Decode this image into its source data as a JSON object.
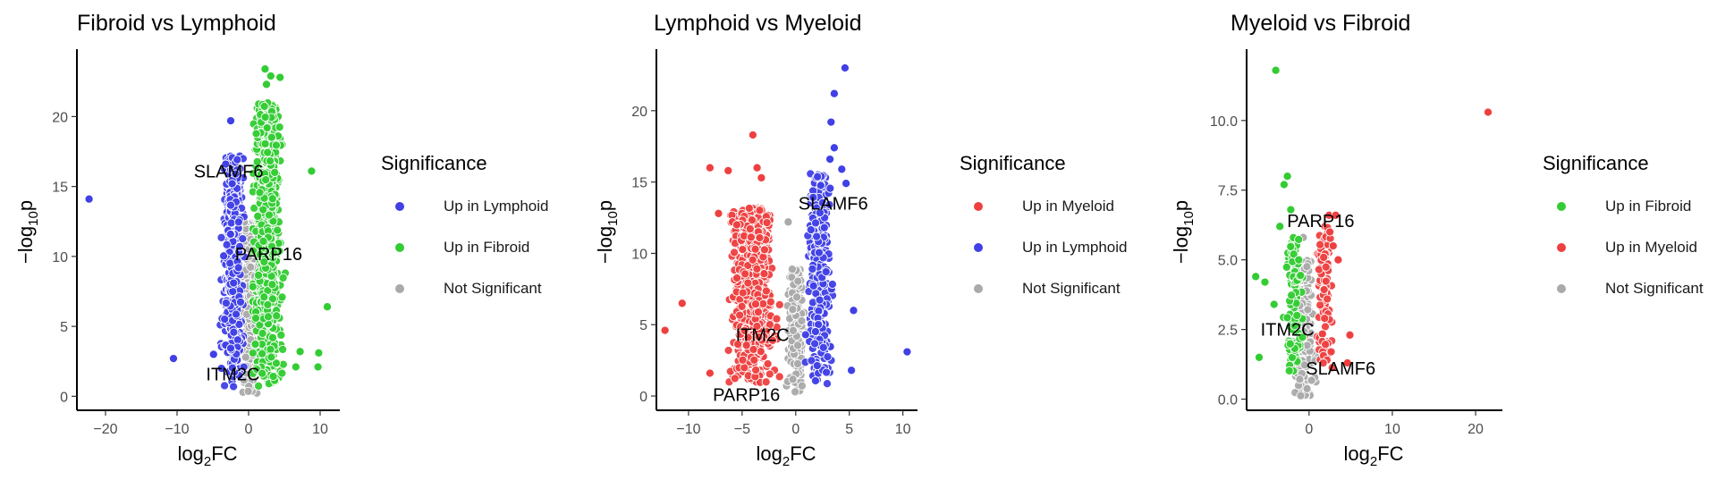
{
  "colors": {
    "lymphoid": "#4040E6",
    "fibroid": "#33CC33",
    "myeloid": "#EE4040",
    "ns": "#AAAAAA"
  },
  "chart_data": [
    {
      "type": "scatter",
      "title": "Fibroid vs Lymphoid",
      "xlabel": "log2FC",
      "ylabel": "-log10p",
      "xlim": [
        -24,
        12.5
      ],
      "ylim": [
        -1,
        24.5
      ],
      "xticks": [
        -20,
        -10,
        0,
        10
      ],
      "yticks": [
        0,
        5,
        10,
        15,
        20
      ],
      "grid": false,
      "legend": {
        "title": "Significance",
        "placement": "right",
        "entries": [
          {
            "label": "Up in Lymphoid",
            "color": "#4040E6"
          },
          {
            "label": "Up in Fibroid",
            "color": "#33CC33"
          },
          {
            "label": "Not Significant",
            "color": "#AAAAAA"
          }
        ]
      },
      "series": [
        {
          "name": "Up in Lymphoid",
          "color": "#4040E6",
          "points": [
            [
              -22.3,
              14.1
            ],
            [
              -10.5,
              2.7
            ],
            [
              -2.5,
              19.7
            ],
            [
              -3.2,
              16.6
            ],
            [
              -2.3,
              15.2
            ],
            [
              -4.9,
              3.0
            ],
            [
              -3.8,
              2.0
            ],
            [
              -2.1,
              8.1
            ]
          ],
          "cluster": {
            "n": 520,
            "x": [
              -5.5,
              -0.6
            ],
            "y": [
              0.5,
              17.3
            ],
            "center": -2.1
          }
        },
        {
          "name": "Up in Fibroid",
          "color": "#33CC33",
          "points": [
            [
              2.3,
              23.4
            ],
            [
              3.1,
              22.9
            ],
            [
              4.4,
              22.8
            ],
            [
              2.5,
              22.3
            ],
            [
              8.8,
              16.1
            ],
            [
              11.0,
              6.4
            ],
            [
              9.7,
              2.1
            ],
            [
              9.8,
              3.1
            ],
            [
              7.2,
              3.2
            ],
            [
              6.6,
              2.1
            ]
          ],
          "cluster": {
            "n": 780,
            "x": [
              0.6,
              7.5
            ],
            "y": [
              0.5,
              21.0
            ],
            "center": 2.6
          }
        },
        {
          "name": "Not Significant",
          "color": "#AAAAAA",
          "points": [],
          "cluster": {
            "n": 260,
            "x": [
              -1.6,
              1.6
            ],
            "y": [
              0.0,
              12.5
            ],
            "center": 0.0
          }
        }
      ],
      "annotations": [
        {
          "text": "SLAMF6",
          "x": -2.8,
          "y": 16.1
        },
        {
          "text": "PARP16",
          "x": 2.8,
          "y": 10.2
        },
        {
          "text": "ITM2C",
          "x": -2.2,
          "y": 1.6
        }
      ]
    },
    {
      "type": "scatter",
      "title": "Lymphoid vs Myeloid",
      "xlabel": "log2FC",
      "ylabel": "-log10p",
      "xlim": [
        -13,
        11.2
      ],
      "ylim": [
        -1,
        24
      ],
      "xticks": [
        -10,
        -5,
        0,
        5,
        10
      ],
      "yticks": [
        0,
        5,
        10,
        15,
        20
      ],
      "grid": false,
      "legend": {
        "title": "Significance",
        "placement": "right",
        "entries": [
          {
            "label": "Up in Myeloid",
            "color": "#EE4040"
          },
          {
            "label": "Up in Lymphoid",
            "color": "#4040E6"
          },
          {
            "label": "Not Significant",
            "color": "#AAAAAA"
          }
        ]
      },
      "series": [
        {
          "name": "Up in Myeloid",
          "color": "#EE4040",
          "points": [
            [
              -12.2,
              4.6
            ],
            [
              -10.6,
              6.5
            ],
            [
              -8.0,
              16.0
            ],
            [
              -6.3,
              15.8
            ],
            [
              -4.0,
              18.3
            ],
            [
              -3.6,
              16.0
            ],
            [
              -3.2,
              15.3
            ],
            [
              -7.2,
              12.8
            ],
            [
              -8.0,
              1.6
            ],
            [
              -5.5,
              12.0
            ]
          ],
          "cluster": {
            "n": 640,
            "x": [
              -8.2,
              -1.5
            ],
            "y": [
              0.8,
              13.2
            ],
            "center": -4.0
          }
        },
        {
          "name": "Up in Lymphoid",
          "color": "#4040E6",
          "points": [
            [
              4.6,
              23.0
            ],
            [
              3.6,
              21.2
            ],
            [
              3.3,
              19.2
            ],
            [
              3.6,
              17.4
            ],
            [
              3.2,
              16.6
            ],
            [
              4.3,
              15.9
            ],
            [
              4.7,
              14.9
            ],
            [
              5.4,
              6.0
            ],
            [
              5.2,
              1.8
            ],
            [
              10.4,
              3.1
            ]
          ],
          "cluster": {
            "n": 330,
            "x": [
              0.9,
              4.6
            ],
            "y": [
              0.8,
              15.6
            ],
            "center": 2.2
          }
        },
        {
          "name": "Not Significant",
          "color": "#AAAAAA",
          "points": [
            [
              -0.7,
              12.2
            ]
          ],
          "cluster": {
            "n": 190,
            "x": [
              -1.4,
              1.2
            ],
            "y": [
              0.0,
              9.0
            ],
            "center": 0.0
          }
        }
      ],
      "annotations": [
        {
          "text": "SLAMF6",
          "x": 3.5,
          "y": 13.5
        },
        {
          "text": "PARP16",
          "x": -4.6,
          "y": 0.1
        },
        {
          "text": "ITM2C",
          "x": -3.1,
          "y": 4.3
        }
      ]
    },
    {
      "type": "scatter",
      "title": "Myeloid vs Fibroid",
      "xlabel": "log2FC",
      "ylabel": "-log10p",
      "xlim": [
        -7.5,
        23
      ],
      "ylim": [
        -0.4,
        12.4
      ],
      "xticks": [
        0,
        10,
        20
      ],
      "yticks": [
        0.0,
        2.5,
        5.0,
        7.5,
        10.0
      ],
      "ytick_labels": [
        "0.0",
        "2.5",
        "5.0",
        "7.5",
        "10.0"
      ],
      "grid": false,
      "legend": {
        "title": "Significance",
        "placement": "right",
        "entries": [
          {
            "label": "Up in Fibroid",
            "color": "#33CC33"
          },
          {
            "label": "Up in Myeloid",
            "color": "#EE4040"
          },
          {
            "label": "Not Significant",
            "color": "#AAAAAA"
          }
        ]
      },
      "series": [
        {
          "name": "Up in Fibroid",
          "color": "#33CC33",
          "points": [
            [
              -4.0,
              11.8
            ],
            [
              -2.6,
              8.0
            ],
            [
              -3.0,
              7.7
            ],
            [
              -2.2,
              6.8
            ],
            [
              -3.5,
              6.2
            ],
            [
              -6.4,
              4.4
            ],
            [
              -5.3,
              4.2
            ],
            [
              -4.2,
              3.4
            ],
            [
              -6.0,
              1.5
            ]
          ],
          "cluster": {
            "n": 110,
            "x": [
              -4.6,
              -0.8
            ],
            "y": [
              0.9,
              5.8
            ],
            "center": -1.8
          }
        },
        {
          "name": "Up in Myeloid",
          "color": "#EE4040",
          "points": [
            [
              21.5,
              10.3
            ],
            [
              2.4,
              6.6
            ],
            [
              3.2,
              6.6
            ],
            [
              2.5,
              6.0
            ],
            [
              2.9,
              5.5
            ],
            [
              3.5,
              5.0
            ],
            [
              4.9,
              2.3
            ],
            [
              4.6,
              1.3
            ]
          ],
          "cluster": {
            "n": 110,
            "x": [
              0.7,
              3.6
            ],
            "y": [
              1.0,
              6.2
            ],
            "center": 1.8
          }
        },
        {
          "name": "Not Significant",
          "color": "#AAAAAA",
          "points": [
            [
              -0.7,
              5.8
            ]
          ],
          "cluster": {
            "n": 160,
            "x": [
              -2.6,
              1.3
            ],
            "y": [
              0.0,
              5.0
            ],
            "center": -0.6
          }
        }
      ],
      "annotations": [
        {
          "text": "PARP16",
          "x": 1.4,
          "y": 6.4
        },
        {
          "text": "ITM2C",
          "x": -2.6,
          "y": 2.5
        },
        {
          "text": "SLAMF6",
          "x": 3.8,
          "y": 1.1
        }
      ]
    }
  ]
}
